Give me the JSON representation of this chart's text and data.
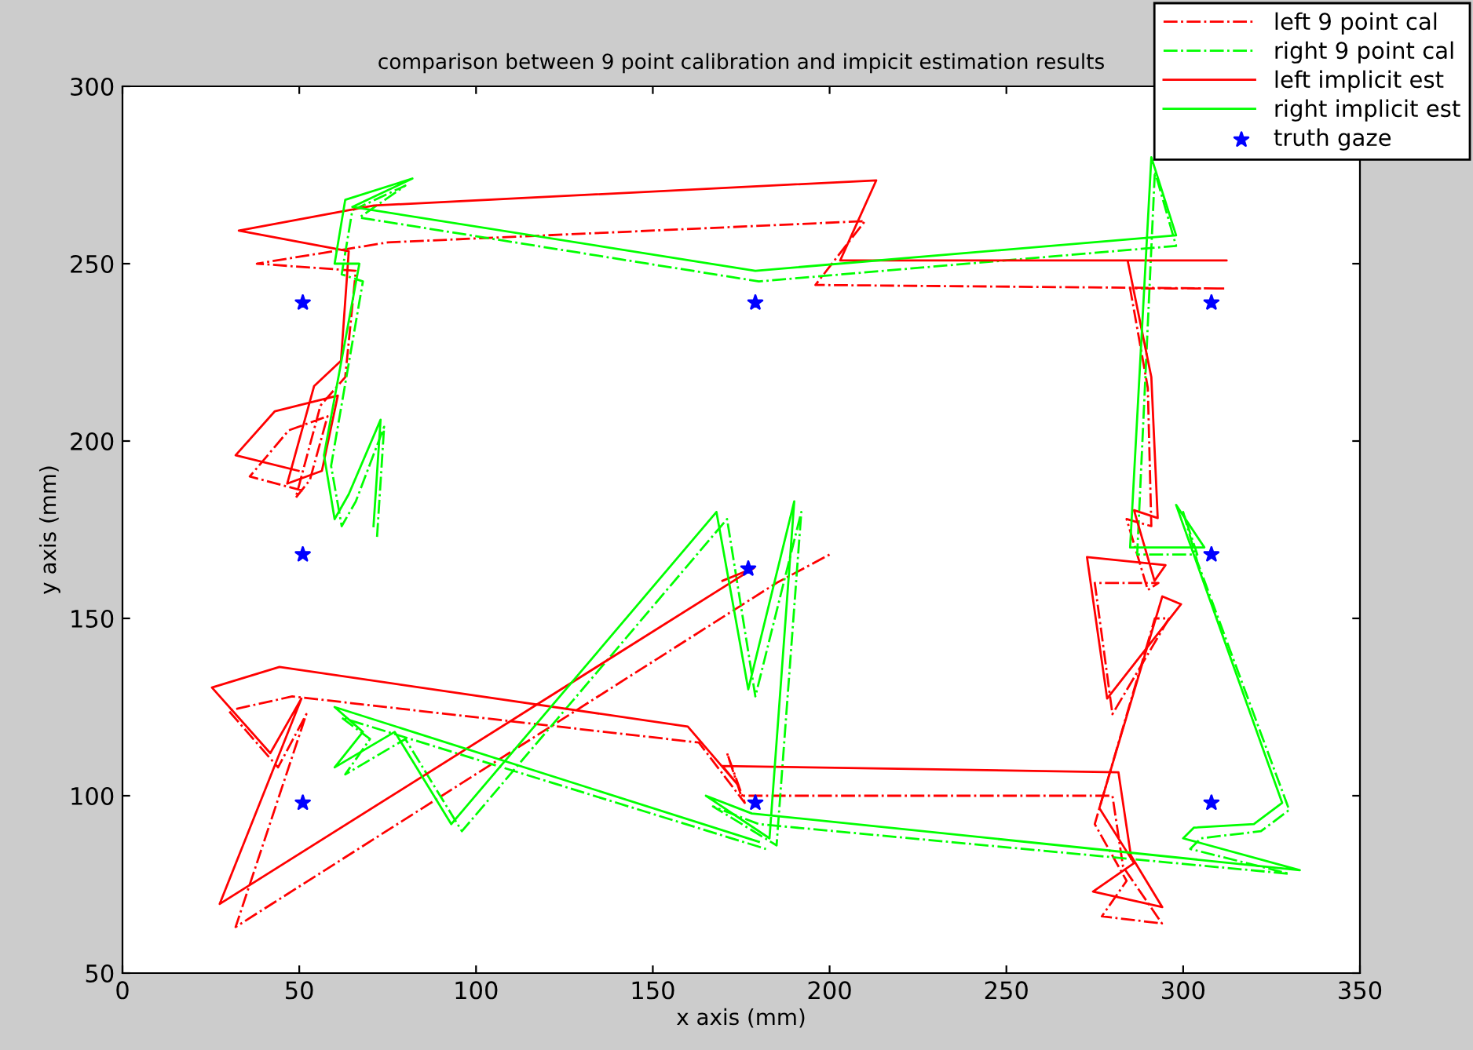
{
  "chart_data": {
    "type": "line",
    "title": "comparison between 9 point calibration and impicit estimation results",
    "xlabel": "x axis (mm)",
    "ylabel": "y axis (mm)",
    "xlim": [
      0,
      350
    ],
    "ylim": [
      50,
      300
    ],
    "xticks": [
      0,
      50,
      100,
      150,
      200,
      250,
      300,
      350
    ],
    "yticks": [
      50,
      100,
      150,
      200,
      250,
      300
    ],
    "grid": false,
    "legend": "top right",
    "series": [
      {
        "name": "left 9 point cal",
        "color": "#ff0000",
        "line_style": "dashdot",
        "x": [
          51,
          36,
          47,
          58,
          53,
          49,
          56,
          63,
          66,
          38,
          75,
          210,
          196,
          312,
          285,
          290,
          291,
          284,
          290,
          293,
          275,
          280,
          296,
          292,
          275,
          284,
          277,
          294,
          283,
          280,
          175,
          171,
          176,
          163,
          48,
          30,
          44,
          52,
          32,
          185,
          200
        ],
        "values": [
          186,
          190,
          203,
          207,
          189,
          184,
          210,
          218,
          248,
          250,
          256,
          262,
          244,
          243,
          243,
          215,
          176,
          178,
          158,
          160,
          160,
          123,
          150,
          150,
          92,
          76,
          66,
          64,
          80,
          100,
          100,
          112,
          98,
          115,
          128,
          124,
          108,
          123,
          63,
          160,
          168
        ]
      },
      {
        "name": "right 9 point cal",
        "color": "#00ff00",
        "line_style": "dashdot",
        "x": [
          72,
          74,
          66,
          62,
          59,
          68,
          62,
          65,
          80,
          67,
          180,
          298,
          292,
          287,
          304,
          300,
          304,
          330,
          322,
          305,
          302,
          330,
          180,
          167,
          185,
          192,
          179,
          171,
          96,
          80,
          63,
          70,
          62,
          182
        ],
        "values": [
          173,
          204,
          183,
          176,
          193,
          245,
          247,
          265,
          272,
          263,
          245,
          255,
          276,
          168,
          168,
          180,
          166,
          96,
          90,
          88,
          85,
          78,
          92,
          97,
          86,
          180,
          128,
          178,
          90,
          116,
          106,
          116,
          122,
          85
        ]
      },
      {
        "name": "left implicit est",
        "color": "#ff0000",
        "line_style": "solid",
        "x": [
          49.8,
          32,
          43.1,
          60.9,
          56.4,
          46.6,
          54.2,
          61.8,
          64,
          32.9,
          71.1,
          213.2,
          203,
          312.3,
          284.3,
          291,
          292.8,
          286.1,
          291.9,
          295,
          272.8,
          278.5,
          299.4,
          294.1,
          276.3,
          286.1,
          274.5,
          294.1,
          285.2,
          281.7,
          169.7,
          174.1,
          159.9,
          44.4,
          25.3,
          41.8,
          50.6,
          27.5,
          178.6,
          169.7
        ],
        "values": [
          191.6,
          196,
          208.4,
          212.8,
          191.6,
          188,
          215.5,
          222.6,
          253.5,
          259.3,
          266.4,
          273.5,
          250.9,
          250.9,
          250.9,
          218,
          178.3,
          180.5,
          160.6,
          165,
          167.3,
          127.4,
          154,
          156.2,
          96.5,
          81,
          73,
          68.6,
          83.2,
          106.6,
          108.4,
          103,
          119.5,
          136.3,
          130.5,
          112,
          127.4,
          69.5,
          164.2,
          160.6
        ]
      },
      {
        "name": "right implicit est",
        "color": "#00ff00",
        "line_style": "solid",
        "x": [
          71,
          73,
          64,
          60,
          57,
          67,
          60,
          63,
          82,
          65,
          179,
          298,
          291,
          285,
          306,
          298,
          303,
          328,
          320,
          303,
          300,
          333,
          178,
          165,
          183,
          190,
          177,
          168,
          93,
          77,
          60,
          68,
          60,
          180
        ],
        "values": [
          176,
          206,
          185,
          178,
          196,
          250,
          250,
          268,
          274,
          266,
          248,
          258,
          280,
          170,
          170,
          182,
          168,
          98,
          92,
          91,
          88,
          79,
          95,
          100,
          88,
          183,
          130,
          180,
          92,
          118,
          108,
          118,
          125,
          87
        ]
      },
      {
        "name": "truth gaze",
        "color": "#0000ff",
        "type": "scatter",
        "marker": "star",
        "x": [
          51,
          179,
          308,
          51,
          177,
          308,
          51,
          179,
          308
        ],
        "values": [
          239,
          239,
          239,
          168,
          164,
          168,
          98,
          98,
          98
        ]
      }
    ]
  }
}
